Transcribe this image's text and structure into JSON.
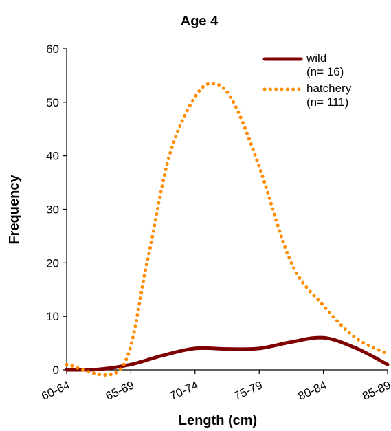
{
  "chart_data": {
    "type": "line",
    "title": "Age 4",
    "xlabel": "Length (cm)",
    "ylabel": "Frequency",
    "categories": [
      "60-64",
      "65-69",
      "70-74",
      "75-79",
      "80-84",
      "85-89"
    ],
    "ylim": [
      0,
      60
    ],
    "yticks": [
      0,
      10,
      20,
      30,
      40,
      50,
      60
    ],
    "grid": false,
    "legend_position": "top-right",
    "series": [
      {
        "name": "wild",
        "legend_lines": [
          "wild",
          "(n= 16)"
        ],
        "color": "#7f0000",
        "line_style": "solid",
        "x": [
          0,
          0.5,
          1,
          1.5,
          2,
          2.5,
          3,
          3.5,
          4,
          4.5,
          5
        ],
        "values": [
          0,
          0.1,
          1,
          2.7,
          4,
          3.9,
          4,
          5.2,
          6,
          4.1,
          1
        ]
      },
      {
        "name": "hatchery",
        "legend_lines": [
          "hatchery",
          "(n= 111)"
        ],
        "color": "#ff8c00",
        "line_style": "dotted",
        "x": [
          0,
          0.85,
          1.25,
          1.6,
          2,
          2.3,
          2.6,
          3,
          3.5,
          4,
          4.5,
          5
        ],
        "values": [
          1,
          0.3,
          20,
          40,
          51,
          53.5,
          50,
          38,
          20,
          12,
          6,
          3
        ]
      }
    ]
  }
}
